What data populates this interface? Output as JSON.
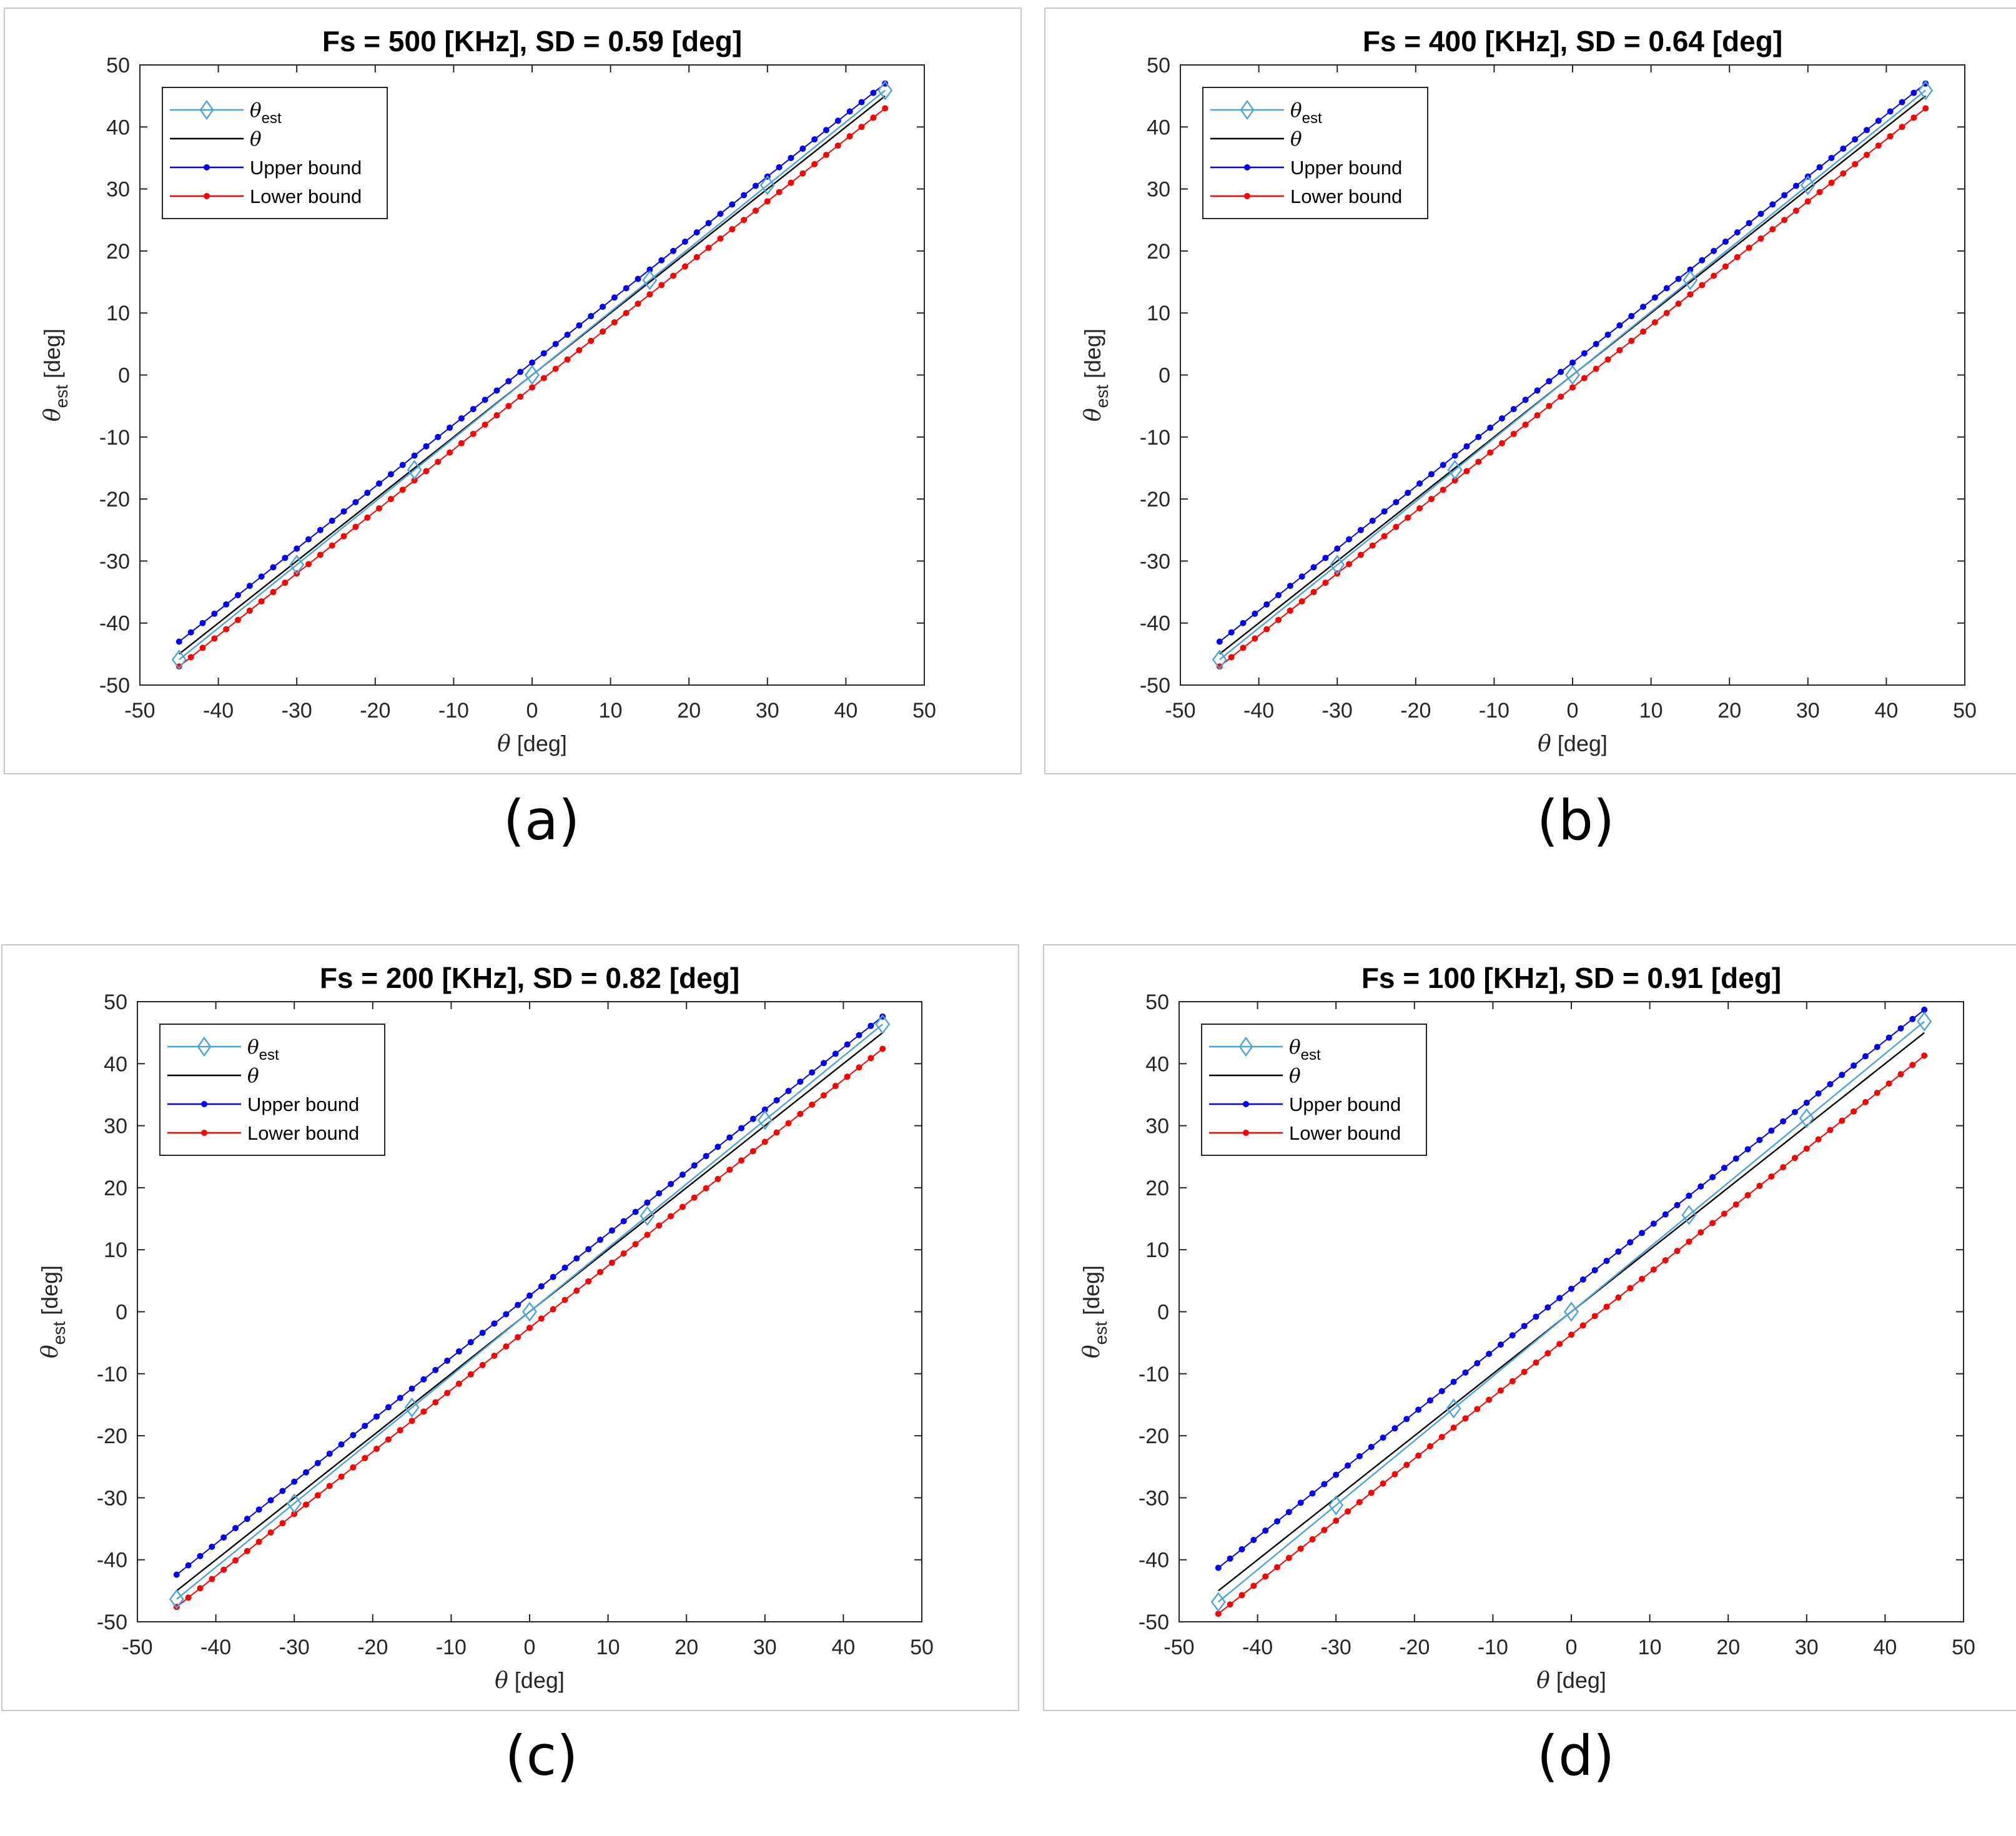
{
  "panels": [
    {
      "caption": "(a)",
      "chart_data": {
        "type": "line",
        "title": "Fs = 500 [KHz], SD =  0.59 [deg]",
        "xlabel_symbol": "θ",
        "xlabel_unit": "[deg]",
        "ylabel_symbol": "θ",
        "ylabel_sub": "est",
        "ylabel_unit": "[deg]",
        "xlim": [
          -50,
          50
        ],
        "ylim": [
          -50,
          50
        ],
        "xticks": [
          -50,
          -40,
          -30,
          -20,
          -10,
          0,
          10,
          20,
          30,
          40,
          50
        ],
        "yticks": [
          -50,
          -40,
          -30,
          -20,
          -10,
          0,
          10,
          20,
          30,
          40,
          50
        ],
        "legend_position": "top-left",
        "legend": [
          {
            "symbol": "θ",
            "sub": "est",
            "label": "",
            "color": "#4fa3d9",
            "marker": "diamond"
          },
          {
            "symbol": "θ",
            "sub": "",
            "label": "",
            "color": "#000000",
            "marker": "none"
          },
          {
            "symbol": "",
            "sub": "",
            "label": "Upper bound",
            "color": "#0000ff",
            "marker": "dot"
          },
          {
            "symbol": "",
            "sub": "",
            "label": "Lower bound",
            "color": "#ff0000",
            "marker": "dot"
          }
        ],
        "x_range": [
          -45,
          45
        ],
        "step": 1.5,
        "series": [
          {
            "name": "θ",
            "color": "#000000",
            "slope": 1,
            "offset": 0
          },
          {
            "name": "θest",
            "color": "#4fa3d9",
            "slope": 1.02,
            "offset": 0,
            "marker": "diamond",
            "marker_step": 5
          },
          {
            "name": "Upper bound",
            "color": "#0000ff",
            "slope": 1,
            "offset": 2,
            "marker": "dot"
          },
          {
            "name": "Lower bound",
            "color": "#ff0000",
            "slope": 1,
            "offset": -2,
            "marker": "dot"
          }
        ]
      }
    },
    {
      "caption": "(b)",
      "chart_data": {
        "type": "line",
        "title": "Fs = 400 [KHz], SD = 0.64 [deg]",
        "xlabel_symbol": "θ",
        "xlabel_unit": "[deg]",
        "ylabel_symbol": "θ",
        "ylabel_sub": "est",
        "ylabel_unit": "[deg]",
        "xlim": [
          -50,
          50
        ],
        "ylim": [
          -50,
          50
        ],
        "xticks": [
          -50,
          -40,
          -30,
          -20,
          -10,
          0,
          10,
          20,
          30,
          40,
          50
        ],
        "yticks": [
          -50,
          -40,
          -30,
          -20,
          -10,
          0,
          10,
          20,
          30,
          40,
          50
        ],
        "legend_position": "top-left",
        "legend": [
          {
            "symbol": "θ",
            "sub": "est",
            "label": "",
            "color": "#4fa3d9",
            "marker": "diamond"
          },
          {
            "symbol": "θ",
            "sub": "",
            "label": "",
            "color": "#000000",
            "marker": "none"
          },
          {
            "symbol": "",
            "sub": "",
            "label": "Upper bound",
            "color": "#0000ff",
            "marker": "dot"
          },
          {
            "symbol": "",
            "sub": "",
            "label": "Lower bound",
            "color": "#ff0000",
            "marker": "dot"
          }
        ],
        "x_range": [
          -45,
          45
        ],
        "step": 1.5,
        "series": [
          {
            "name": "θ",
            "color": "#000000",
            "slope": 1,
            "offset": 0
          },
          {
            "name": "θest",
            "color": "#4fa3d9",
            "slope": 1.02,
            "offset": 0,
            "marker": "diamond",
            "marker_step": 5
          },
          {
            "name": "Upper bound",
            "color": "#0000ff",
            "slope": 1,
            "offset": 2,
            "marker": "dot"
          },
          {
            "name": "Lower bound",
            "color": "#ff0000",
            "slope": 1,
            "offset": -2,
            "marker": "dot"
          }
        ]
      }
    },
    {
      "caption": "(c)",
      "chart_data": {
        "type": "line",
        "title": "Fs = 200 [KHz], SD = 0.82 [deg]",
        "xlabel_symbol": "θ",
        "xlabel_unit": "[deg]",
        "ylabel_symbol": "θ",
        "ylabel_sub": "est",
        "ylabel_unit": "[deg]",
        "xlim": [
          -50,
          50
        ],
        "ylim": [
          -50,
          50
        ],
        "xticks": [
          -50,
          -40,
          -30,
          -20,
          -10,
          0,
          10,
          20,
          30,
          40,
          50
        ],
        "yticks": [
          -50,
          -40,
          -30,
          -20,
          -10,
          0,
          10,
          20,
          30,
          40,
          50
        ],
        "legend_position": "top-left",
        "legend": [
          {
            "symbol": "θ",
            "sub": "est",
            "label": "",
            "color": "#4fa3d9",
            "marker": "diamond"
          },
          {
            "symbol": "θ",
            "sub": "",
            "label": "",
            "color": "#000000",
            "marker": "none"
          },
          {
            "symbol": "",
            "sub": "",
            "label": "Upper bound",
            "color": "#0000ff",
            "marker": "dot"
          },
          {
            "symbol": "",
            "sub": "",
            "label": "Lower bound",
            "color": "#ff0000",
            "marker": "dot"
          }
        ],
        "x_range": [
          -45,
          45
        ],
        "step": 1.5,
        "series": [
          {
            "name": "θ",
            "color": "#000000",
            "slope": 1,
            "offset": 0
          },
          {
            "name": "θest",
            "color": "#4fa3d9",
            "slope": 1.03,
            "offset": 0,
            "marker": "diamond",
            "marker_step": 5
          },
          {
            "name": "Upper bound",
            "color": "#0000ff",
            "slope": 1,
            "offset": 2.6,
            "marker": "dot"
          },
          {
            "name": "Lower bound",
            "color": "#ff0000",
            "slope": 1,
            "offset": -2.6,
            "marker": "dot"
          }
        ]
      }
    },
    {
      "caption": "(d)",
      "chart_data": {
        "type": "line",
        "title": "Fs = 100 [KHz], SD = 0.91 [deg]",
        "xlabel_symbol": "θ",
        "xlabel_unit": "[deg]",
        "ylabel_symbol": "θ",
        "ylabel_sub": "est",
        "ylabel_unit": "[deg]",
        "xlim": [
          -50,
          50
        ],
        "ylim": [
          -50,
          50
        ],
        "xticks": [
          -50,
          -40,
          -30,
          -20,
          -10,
          0,
          10,
          20,
          30,
          40,
          50
        ],
        "yticks": [
          -50,
          -40,
          -30,
          -20,
          -10,
          0,
          10,
          20,
          30,
          40,
          50
        ],
        "legend_position": "top-left",
        "legend": [
          {
            "symbol": "θ",
            "sub": "est",
            "label": "",
            "color": "#4fa3d9",
            "marker": "diamond"
          },
          {
            "symbol": "θ",
            "sub": "",
            "label": "",
            "color": "#000000",
            "marker": "none"
          },
          {
            "symbol": "",
            "sub": "",
            "label": "Upper bound",
            "color": "#0000ff",
            "marker": "dot"
          },
          {
            "symbol": "",
            "sub": "",
            "label": "Lower bound",
            "color": "#ff0000",
            "marker": "dot"
          }
        ],
        "x_range": [
          -45,
          45
        ],
        "step": 1.5,
        "series": [
          {
            "name": "θ",
            "color": "#000000",
            "slope": 1,
            "offset": 0
          },
          {
            "name": "θest",
            "color": "#4fa3d9",
            "slope": 1.04,
            "offset": 0,
            "marker": "diamond",
            "marker_step": 5
          },
          {
            "name": "Upper bound",
            "color": "#0000ff",
            "slope": 1,
            "offset": 3.7,
            "marker": "dot"
          },
          {
            "name": "Lower bound",
            "color": "#ff0000",
            "slope": 1,
            "offset": -3.7,
            "marker": "dot"
          }
        ]
      }
    }
  ]
}
